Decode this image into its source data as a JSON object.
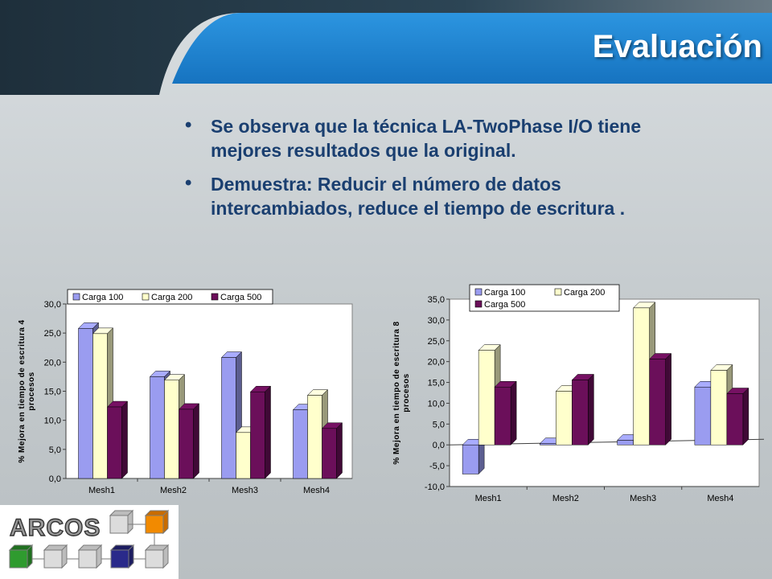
{
  "slide": {
    "title": "Evaluación",
    "bullets": [
      "Se observa que la técnica LA-TwoPhase I/O tiene mejores resultados que la original.",
      "Demuestra: Reducir el número de datos intercambiados, reduce el tiempo de escritura ."
    ]
  },
  "logo": {
    "text": "ARCOS"
  },
  "colors": {
    "title_bar": "#1e88d5",
    "text": "#1a3f70",
    "carga100": "#9a9cf0",
    "carga200": "#ffffcc",
    "carga500": "#6b0f5a"
  },
  "chart_data": [
    {
      "type": "bar",
      "ylabel": "% Mejora en tiempo de escritura 4 procesos",
      "categories": [
        "Mesh1",
        "Mesh2",
        "Mesh3",
        "Mesh4"
      ],
      "series": [
        {
          "name": "Carga 100",
          "values": [
            25.8,
            17.5,
            20.8,
            11.8
          ]
        },
        {
          "name": "Carga 200",
          "values": [
            24.9,
            16.9,
            7.9,
            14.3
          ]
        },
        {
          "name": "Carga 500",
          "values": [
            12.3,
            11.9,
            14.9,
            8.6
          ]
        }
      ],
      "ylim": [
        0,
        30
      ],
      "yticks": [
        "0,0",
        "5,0",
        "10,0",
        "15,0",
        "20,0",
        "25,0",
        "30,0"
      ],
      "legend": "top",
      "grid": false
    },
    {
      "type": "bar",
      "ylabel": "% Mejora en tiempo de escritura 8 procesos",
      "categories": [
        "Mesh1",
        "Mesh2",
        "Mesh3",
        "Mesh4"
      ],
      "series": [
        {
          "name": "Carga 100",
          "values": [
            -7.0,
            0.3,
            1.1,
            13.9
          ]
        },
        {
          "name": "Carga 200",
          "values": [
            22.7,
            12.9,
            32.9,
            17.9
          ]
        },
        {
          "name": "Carga 500",
          "values": [
            13.9,
            15.6,
            20.6,
            12.3
          ]
        }
      ],
      "ylim": [
        -10,
        35
      ],
      "yticks": [
        "-10,0",
        "-5,0",
        "0,0",
        "5,0",
        "10,0",
        "15,0",
        "20,0",
        "25,0",
        "30,0",
        "35,0"
      ],
      "legend": "top",
      "grid": false
    }
  ]
}
